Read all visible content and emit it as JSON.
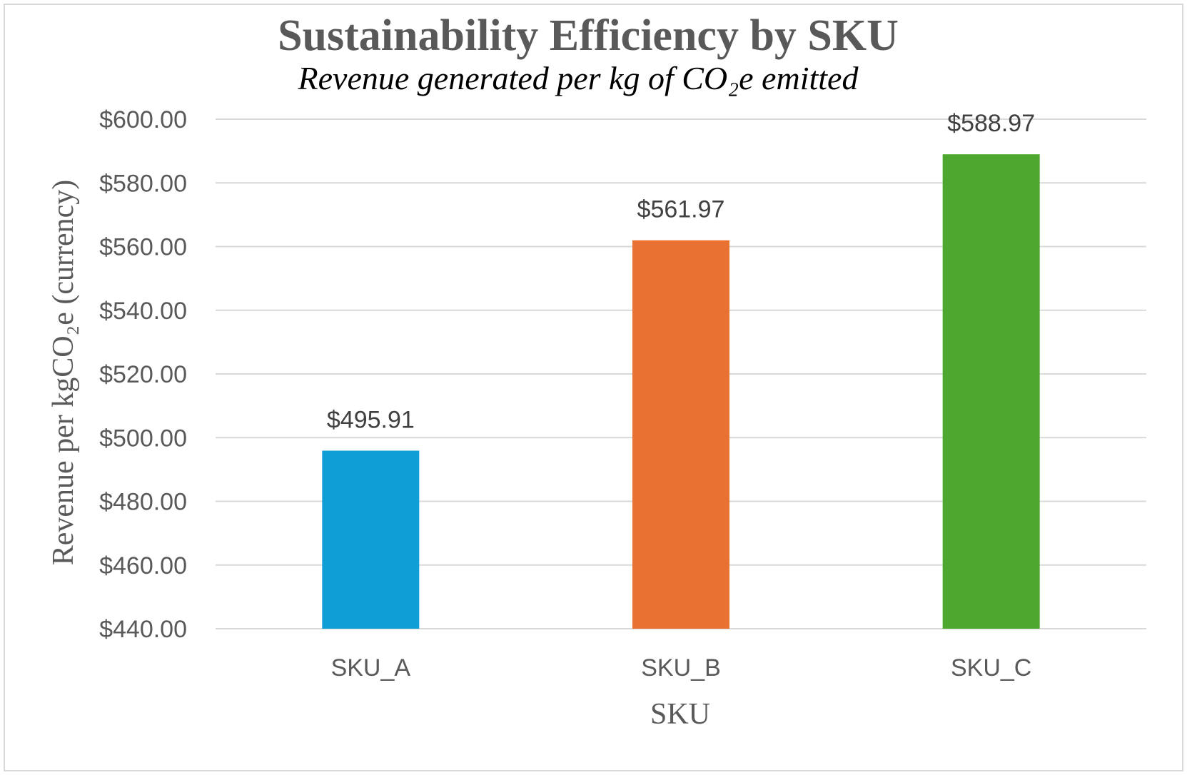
{
  "chart_data": {
    "type": "bar",
    "title": "Sustainability Efficiency by SKU",
    "subtitle": "Revenue generated per kg of CO₂e emitted",
    "xlabel": "SKU",
    "ylabel": "Revenue per kgCO₂e (currency)",
    "categories": [
      "SKU_A",
      "SKU_B",
      "SKU_C"
    ],
    "values": [
      495.91,
      561.97,
      588.97
    ],
    "data_labels": [
      "$495.91",
      "$561.97",
      "$588.97"
    ],
    "colors": [
      "#0f9ed5",
      "#e97132",
      "#4ea72e"
    ],
    "ylim": [
      440,
      600
    ],
    "yticks": [
      440,
      460,
      480,
      500,
      520,
      540,
      560,
      580,
      600
    ],
    "ytick_labels": [
      "$440.00",
      "$460.00",
      "$480.00",
      "$500.00",
      "$520.00",
      "$540.00",
      "$560.00",
      "$580.00",
      "$600.00"
    ],
    "grid": true,
    "legend": "none"
  }
}
